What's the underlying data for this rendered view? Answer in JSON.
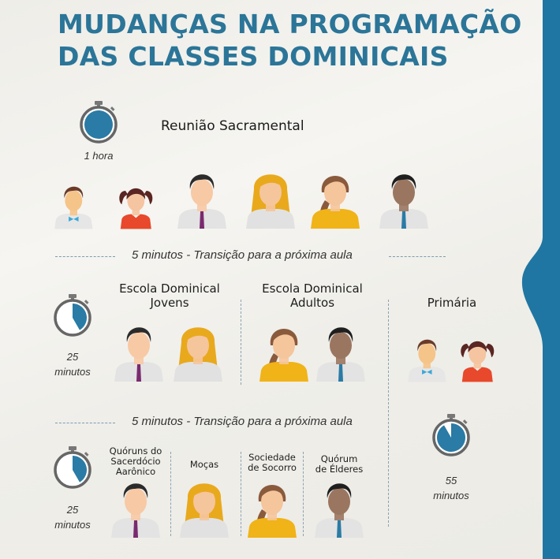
{
  "title": {
    "line1": "MUDANÇAS NA PROGRAMAÇÃO",
    "line2": "DAS CLASSES DOMINICAIS"
  },
  "colors": {
    "accent": "#2a7ba5",
    "title": "#2b7598",
    "band": "#1f76a2",
    "stopwatch_ring": "#666666"
  },
  "sacramental": {
    "label": "Reunião Sacramental",
    "time": "1 hora",
    "stopwatch_fill_minutes": 60,
    "people": [
      "boy",
      "girl",
      "man",
      "blonde-woman",
      "brunette-woman",
      "dark-man"
    ]
  },
  "transition1": "5 minutos - Transição para a próxima aula",
  "block1": {
    "time_number": "25",
    "time_unit": "minutos",
    "stopwatch_fill_minutes": 25,
    "youth": {
      "line1": "Escola Dominical",
      "line2": "Jovens",
      "people": [
        "man",
        "blonde-woman"
      ]
    },
    "adults": {
      "line1": "Escola Dominical",
      "line2": "Adultos",
      "people": [
        "brunette-woman",
        "dark-man"
      ]
    }
  },
  "primary": {
    "label": "Primária",
    "people": [
      "boy",
      "girl"
    ],
    "time_number": "55",
    "time_unit": "minutos",
    "stopwatch_fill_minutes": 55
  },
  "transition2": "5 minutos - Transição para a próxima aula",
  "block2": {
    "time_number": "25",
    "time_unit": "minutos",
    "stopwatch_fill_minutes": 25,
    "classes": [
      {
        "lines": [
          "Quóruns do",
          "Sacerdócio",
          "Aarônico"
        ],
        "person": "man"
      },
      {
        "lines": [
          "Moças"
        ],
        "person": "blonde-woman"
      },
      {
        "lines": [
          "Sociedade",
          "de Socorro"
        ],
        "person": "brunette-woman"
      },
      {
        "lines": [
          "Quórum",
          "de Élderes"
        ],
        "person": "dark-man"
      }
    ]
  }
}
